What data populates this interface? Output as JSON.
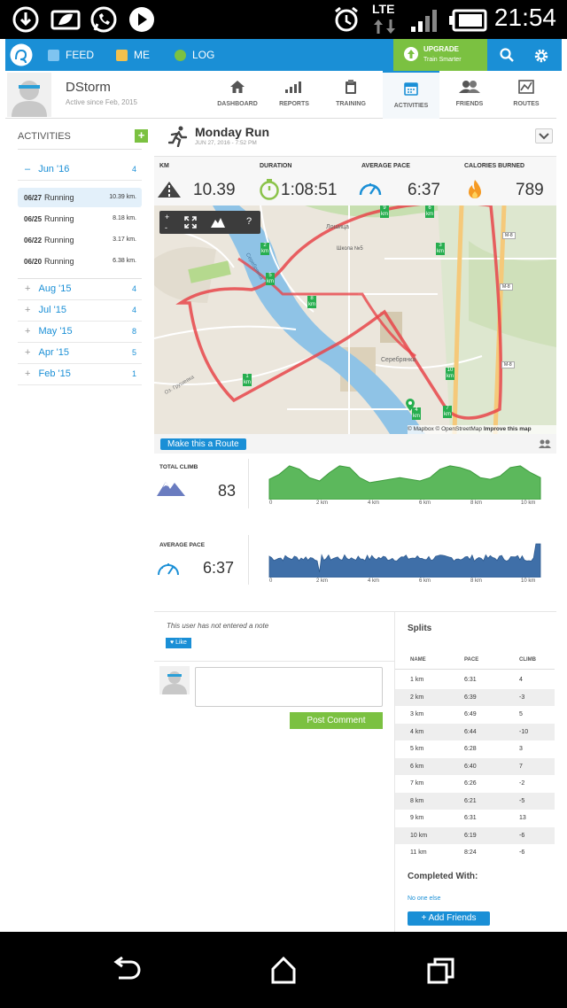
{
  "status_bar": {
    "time": "21:54",
    "network": "LTE"
  },
  "nav": {
    "feed": "FEED",
    "me": "ME",
    "log": "LOG",
    "upgrade_title": "UPGRADE",
    "upgrade_sub": "Train Smarter"
  },
  "profile": {
    "name": "DStorm",
    "since": "Active since Feb, 2015",
    "tabs": [
      "DASHBOARD",
      "REPORTS",
      "TRAINING",
      "ACTIVITIES",
      "FRIENDS",
      "ROUTES"
    ]
  },
  "sidebar": {
    "title": "ACTIVITIES",
    "current_month": {
      "label": "Jun '16",
      "count": "4",
      "sign": "–"
    },
    "activities": [
      {
        "date": "06/27",
        "type": "Running",
        "distance": "10.39 km."
      },
      {
        "date": "06/25",
        "type": "Running",
        "distance": "8.18 km."
      },
      {
        "date": "06/22",
        "type": "Running",
        "distance": "3.17 km."
      },
      {
        "date": "06/20",
        "type": "Running",
        "distance": "6.38 km."
      }
    ],
    "months": [
      {
        "label": "Aug '15",
        "count": "4"
      },
      {
        "label": "Jul '15",
        "count": "4"
      },
      {
        "label": "May '15",
        "count": "8"
      },
      {
        "label": "Apr '15",
        "count": "5"
      },
      {
        "label": "Feb '15",
        "count": "1"
      }
    ]
  },
  "activity": {
    "title": "Monday Run",
    "datetime": "JUN 27, 2016  -  7:52 PM",
    "stats": {
      "km_label": "KM",
      "km": "10.39",
      "duration_label": "DURATION",
      "duration": "1:08:51",
      "pace_label": "AVERAGE PACE",
      "pace": "6:37",
      "calories_label": "CALORIES BURNED",
      "calories": "789"
    }
  },
  "map": {
    "attribution": "© Mapbox © OpenStreetMap",
    "improve": "Improve this map",
    "labels": [
      "Серебрянка",
      "Серебрянка",
      "Школа №5",
      "Лошица",
      "Оз. Грушевка"
    ],
    "markers": [
      "1",
      "2",
      "3",
      "4",
      "5",
      "6",
      "7",
      "8",
      "9",
      "10"
    ],
    "marker_unit": "km",
    "highway_labels": [
      "M-8",
      "M-8",
      "M-8"
    ],
    "make_route": "Make this a Route"
  },
  "charts": {
    "climb_label": "TOTAL CLIMB",
    "climb": "83",
    "pace_label": "AVERAGE PACE",
    "pace": "6:37",
    "x_ticks": [
      "0",
      "2 km",
      "4 km",
      "6 km",
      "8 km",
      "10 km"
    ],
    "colors": {
      "climb": "#5cb85c",
      "pace": "#3f6fa8"
    }
  },
  "note": {
    "text": "This user has not entered a note",
    "like": "Like",
    "post_comment": "Post Comment"
  },
  "splits": {
    "title": "Splits",
    "headers": [
      "NAME",
      "PACE",
      "CLIMB"
    ],
    "rows": [
      [
        "1 km",
        "6:31",
        "4"
      ],
      [
        "2 km",
        "6:39",
        "-3"
      ],
      [
        "3 km",
        "6:49",
        "5"
      ],
      [
        "4 km",
        "6:44",
        "-10"
      ],
      [
        "5 km",
        "6:28",
        "3"
      ],
      [
        "6 km",
        "6:40",
        "7"
      ],
      [
        "7 km",
        "6:26",
        "-2"
      ],
      [
        "8 km",
        "6:21",
        "-5"
      ],
      [
        "9 km",
        "6:31",
        "13"
      ],
      [
        "10 km",
        "6:19",
        "-6"
      ],
      [
        "11 km",
        "8:24",
        "-6"
      ]
    ],
    "completed_title": "Completed With:",
    "no_one": "No one else",
    "add_friends": "+ Add Friends"
  }
}
